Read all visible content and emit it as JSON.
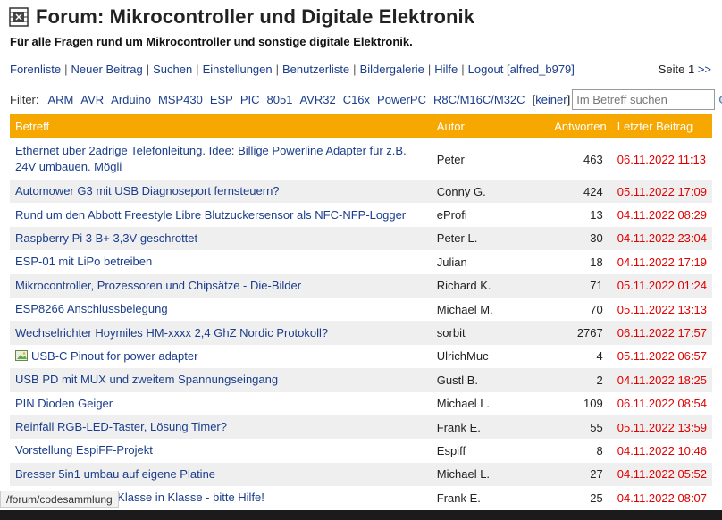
{
  "header": {
    "title": "Forum: Mikrocontroller und Digitale Elektronik",
    "subtitle": "Für alle Fragen rund um Mikrocontroller und sonstige digitale Elektronik."
  },
  "nav": {
    "items": [
      "Forenliste",
      "Neuer Beitrag",
      "Suchen",
      "Einstellungen",
      "Benutzerliste",
      "Bildergalerie",
      "Hilfe",
      "Logout [alfred_b979]"
    ],
    "separator": "|",
    "page_label": "Seite 1",
    "next_label": ">>"
  },
  "filter": {
    "label": "Filter:",
    "items": [
      "ARM",
      "AVR",
      "Arduino",
      "MSP430",
      "ESP",
      "PIC",
      "8051",
      "AVR32",
      "C16x",
      "PowerPC",
      "R8C/M16C/M32C"
    ],
    "none_label": "keiner",
    "search_placeholder": "Im Betreff suchen",
    "search_icon": "magnifier-icon"
  },
  "table": {
    "headers": {
      "subject": "Betreff",
      "author": "Autor",
      "replies": "Antworten",
      "last": "Letzter Beitrag"
    },
    "header_color": "#f7a800",
    "date_color": "#e00000",
    "rows": [
      {
        "subject": "Ethernet über 2adrige Telefonleitung. Idee: Billige Powerline Adapter für z.B. 24V umbauen. Mögli",
        "author": "Peter",
        "replies": "463",
        "last": "06.11.2022 11:13"
      },
      {
        "subject": "Automower G3 mit USB Diagnoseport fernsteuern?",
        "author": "Conny G.",
        "replies": "424",
        "last": "05.11.2022 17:09"
      },
      {
        "subject": "Rund um den Abbott Freestyle Libre Blutzuckersensor als NFC-NFP-Logger",
        "author": "eProfi",
        "replies": "13",
        "last": "04.11.2022 08:29"
      },
      {
        "subject": "Raspberry Pi 3 B+ 3,3V geschrottet",
        "author": "Peter L.",
        "replies": "30",
        "last": "04.11.2022 23:04"
      },
      {
        "subject": "ESP-01 mit LiPo betreiben",
        "author": "Julian",
        "replies": "18",
        "last": "04.11.2022 17:19"
      },
      {
        "subject": "Mikrocontroller, Prozessoren und Chipsätze - Die-Bilder",
        "author": "Richard K.",
        "replies": "71",
        "last": "05.11.2022 01:24"
      },
      {
        "subject": "ESP8266 Anschlussbelegung",
        "author": "Michael M.",
        "replies": "70",
        "last": "05.11.2022 13:13"
      },
      {
        "subject": "Wechselrichter Hoymiles HM-xxxx 2,4 GhZ Nordic Protokoll?",
        "author": "sorbit",
        "replies": "2767",
        "last": "06.11.2022 17:57"
      },
      {
        "subject": "USB-C Pinout for power adapter",
        "author": "UlrichMuc",
        "replies": "4",
        "last": "05.11.2022 06:57",
        "attachment": true
      },
      {
        "subject": "USB PD mit MUX und zweitem Spannungseingang",
        "author": "Gustl B.",
        "replies": "2",
        "last": "04.11.2022 18:25"
      },
      {
        "subject": "PIN Dioden Geiger",
        "author": "Michael L.",
        "replies": "109",
        "last": "06.11.2022 08:54"
      },
      {
        "subject": "Reinfall RGB-LED-Taster, Lösung Timer?",
        "author": "Frank E.",
        "replies": "55",
        "last": "05.11.2022 13:59"
      },
      {
        "subject": "Vorstellung EspiFF-Projekt",
        "author": "Espiff",
        "replies": "8",
        "last": "04.11.2022 10:46"
      },
      {
        "subject": "Bresser 5in1 umbau auf eigene Platine",
        "author": "Michael L.",
        "replies": "27",
        "last": "04.11.2022 05:52"
      },
      {
        "subject": "mal wieder Arduino Klasse in Klasse - bitte Hilfe!",
        "author": "Frank E.",
        "replies": "25",
        "last": "04.11.2022 08:07"
      }
    ]
  },
  "statusbar": {
    "url": "/forum/codesammlung"
  }
}
